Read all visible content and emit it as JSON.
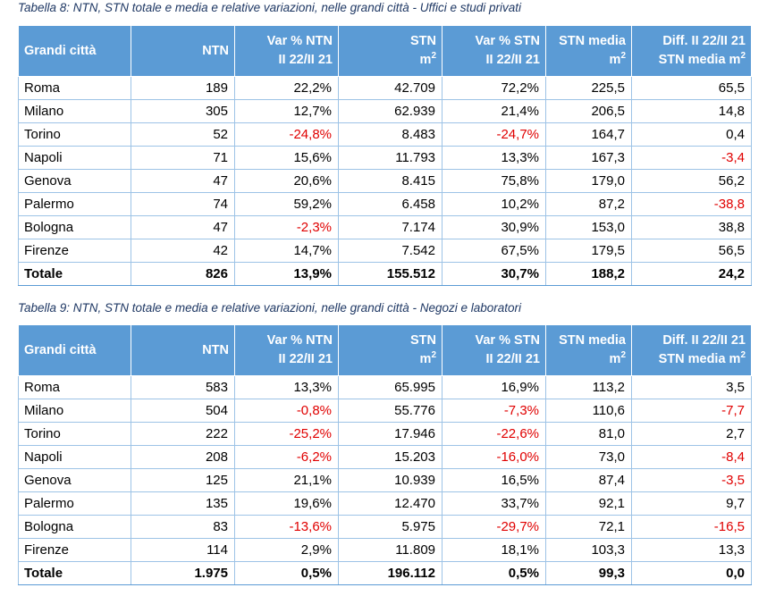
{
  "tables": [
    {
      "caption": "Tabella 8: NTN, STN totale e media e relative variazioni, nelle grandi città - Uffici e studi privati",
      "headers": [
        "Grandi città",
        "NTN",
        "Var % NTN II 22/II 21",
        "STN m2",
        "Var % STN II 22/II 21",
        "STN media m2",
        "Diff. II 22/II 21 STN media m2"
      ],
      "rows": [
        [
          "Roma",
          "189",
          "22,2%",
          "42.709",
          "72,2%",
          "225,5",
          "65,5"
        ],
        [
          "Milano",
          "305",
          "12,7%",
          "62.939",
          "21,4%",
          "206,5",
          "14,8"
        ],
        [
          "Torino",
          "52",
          "-24,8%",
          "8.483",
          "-24,7%",
          "164,7",
          "0,4"
        ],
        [
          "Napoli",
          "71",
          "15,6%",
          "11.793",
          "13,3%",
          "167,3",
          "-3,4"
        ],
        [
          "Genova",
          "47",
          "20,6%",
          "8.415",
          "75,8%",
          "179,0",
          "56,2"
        ],
        [
          "Palermo",
          "74",
          "59,2%",
          "6.458",
          "10,2%",
          "87,2",
          "-38,8"
        ],
        [
          "Bologna",
          "47",
          "-2,3%",
          "7.174",
          "30,9%",
          "153,0",
          "38,8"
        ],
        [
          "Firenze",
          "42",
          "14,7%",
          "7.542",
          "67,5%",
          "179,5",
          "56,5"
        ]
      ],
      "total": [
        "Totale",
        "826",
        "13,9%",
        "155.512",
        "30,7%",
        "188,2",
        "24,2"
      ]
    },
    {
      "caption": "Tabella 9: NTN, STN totale e media e relative variazioni, nelle grandi città - Negozi e laboratori",
      "headers": [
        "Grandi città",
        "NTN",
        "Var % NTN II 22/II 21",
        "STN m2",
        "Var % STN II 22/II 21",
        "STN media m2",
        "Diff. II 22/II 21 STN media m2"
      ],
      "rows": [
        [
          "Roma",
          "583",
          "13,3%",
          "65.995",
          "16,9%",
          "113,2",
          "3,5"
        ],
        [
          "Milano",
          "504",
          "-0,8%",
          "55.776",
          "-7,3%",
          "110,6",
          "-7,7"
        ],
        [
          "Torino",
          "222",
          "-25,2%",
          "17.946",
          "-22,6%",
          "81,0",
          "2,7"
        ],
        [
          "Napoli",
          "208",
          "-6,2%",
          "15.203",
          "-16,0%",
          "73,0",
          "-8,4"
        ],
        [
          "Genova",
          "125",
          "21,1%",
          "10.939",
          "16,5%",
          "87,4",
          "-3,5"
        ],
        [
          "Palermo",
          "135",
          "19,6%",
          "12.470",
          "33,7%",
          "92,1",
          "9,7"
        ],
        [
          "Bologna",
          "83",
          "-13,6%",
          "5.975",
          "-29,7%",
          "72,1",
          "-16,5"
        ],
        [
          "Firenze",
          "114",
          "2,9%",
          "11.809",
          "18,1%",
          "103,3",
          "13,3"
        ]
      ],
      "total": [
        "Totale",
        "1.975",
        "0,5%",
        "196.112",
        "0,5%",
        "99,3",
        "0,0"
      ]
    }
  ]
}
